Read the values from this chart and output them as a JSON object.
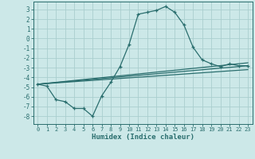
{
  "xlabel": "Humidex (Indice chaleur)",
  "background_color": "#cce8e8",
  "grid_color": "#aacece",
  "line_color": "#2a6e6e",
  "xlim": [
    -0.5,
    23.5
  ],
  "ylim": [
    -8.8,
    3.8
  ],
  "xticks": [
    0,
    1,
    2,
    3,
    4,
    5,
    6,
    7,
    8,
    9,
    10,
    11,
    12,
    13,
    14,
    15,
    16,
    17,
    18,
    19,
    20,
    21,
    22,
    23
  ],
  "yticks": [
    -8,
    -7,
    -6,
    -5,
    -4,
    -3,
    -2,
    -1,
    0,
    1,
    2,
    3
  ],
  "series1_x": [
    0,
    1,
    2,
    3,
    4,
    5,
    6,
    7,
    8,
    9,
    10,
    11,
    12,
    13,
    14,
    15,
    16,
    17,
    18,
    19,
    20,
    21,
    22,
    23
  ],
  "series1_y": [
    -4.7,
    -4.9,
    -6.3,
    -6.5,
    -7.2,
    -7.2,
    -8.0,
    -5.9,
    -4.5,
    -2.9,
    -0.6,
    2.5,
    2.7,
    2.9,
    3.3,
    2.7,
    1.4,
    -0.9,
    -2.2,
    -2.6,
    -2.9,
    -2.6,
    -2.8,
    -2.8
  ],
  "series2_x": [
    0,
    23
  ],
  "series2_y": [
    -4.7,
    -2.8
  ],
  "series3_x": [
    0,
    23
  ],
  "series3_y": [
    -4.7,
    -3.2
  ],
  "series4_x": [
    0,
    23
  ],
  "series4_y": [
    -4.7,
    -2.5
  ]
}
